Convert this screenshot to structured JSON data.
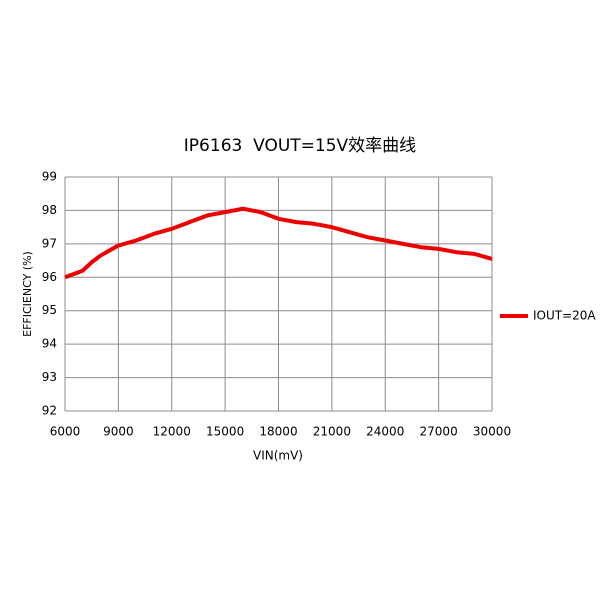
{
  "chart_data": {
    "type": "line",
    "title": "IP6163  VOUT=15V效率曲线",
    "x_label": "VIN(mV)",
    "y_label": "EFFICIENCY (%)",
    "x": [
      6000,
      6500,
      7000,
      7500,
      8000,
      8500,
      9000,
      10000,
      11000,
      12000,
      13000,
      14000,
      15000,
      16000,
      17000,
      18000,
      19000,
      20000,
      21000,
      22000,
      23000,
      24000,
      25000,
      26000,
      27000,
      28000,
      29000,
      30000
    ],
    "series": [
      {
        "name": "IOUT=20A",
        "color": "#ee0000",
        "values": [
          96.0,
          96.1,
          96.2,
          96.45,
          96.65,
          96.8,
          96.95,
          97.1,
          97.3,
          97.45,
          97.65,
          97.85,
          97.95,
          98.05,
          97.95,
          97.75,
          97.65,
          97.6,
          97.5,
          97.35,
          97.2,
          97.1,
          97.0,
          96.9,
          96.85,
          96.75,
          96.7,
          96.55
        ]
      }
    ],
    "xlim": [
      6000,
      30000
    ],
    "xticks": [
      6000,
      9000,
      12000,
      15000,
      18000,
      21000,
      24000,
      27000,
      30000
    ],
    "ylim": [
      92,
      99
    ],
    "yticks": [
      92,
      93,
      94,
      95,
      96,
      97,
      98,
      99
    ],
    "grid": true,
    "legend": "right"
  }
}
